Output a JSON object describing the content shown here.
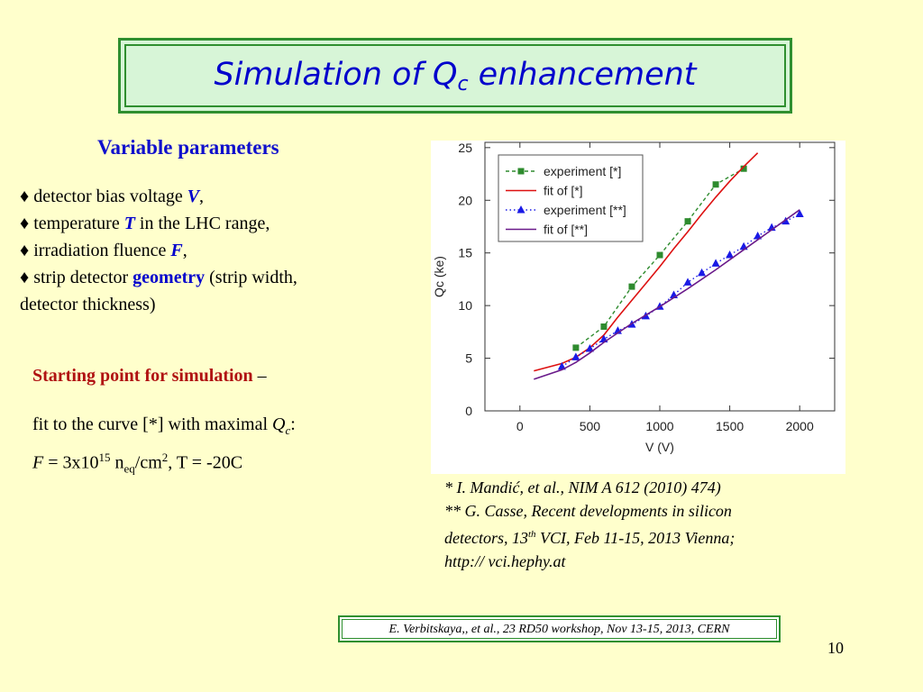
{
  "title": {
    "prefix": "Simulation of Q",
    "sub": "c",
    "suffix": " enhancement"
  },
  "heading": "Variable parameters",
  "params": [
    {
      "text": "♦ detector bias voltage ",
      "em": "V",
      "tail": ","
    },
    {
      "text": "♦ temperature ",
      "em": "T",
      "tail": " in the LHC range,"
    },
    {
      "text": "♦ irradiation fluence ",
      "em": "F",
      "tail": ","
    },
    {
      "text": "♦ strip detector ",
      "em": "geometry",
      "tail": " (strip width,"
    },
    {
      "text": "detector thickness)",
      "em": "",
      "tail": ""
    }
  ],
  "starting": {
    "label": "Starting point for simulation",
    "dash": " –"
  },
  "fit": {
    "line1": "fit to the curve [*] with maximal ",
    "q": "Q",
    "qsub": "c",
    "colon": ":",
    "f": "F",
    "eq": " = 3x10",
    "exp": "15",
    "n": " n",
    "nsub": "eq",
    "cm": "/cm",
    "cmexp": "2",
    "temp": ",   T = -20C"
  },
  "refs": {
    "r1": "* I. Mandić, et al., NIM A 612 (2010) 474)",
    "r2": "** G. Casse, Recent developments in silicon",
    "r3a": "detectors, 13",
    "r3sup": "th",
    "r3b": " VCI, Feb 11-15, 2013 Vienna;",
    "r4": "http:// vci.hephy.at"
  },
  "credit": "E. Verbitskaya,, et  al., 23 RD50 workshop, Nov 13-15, 2013, CERN",
  "page_number": "10",
  "colors": {
    "background": "#ffffcc",
    "green": "#2f8f2f",
    "blue": "#0000cc",
    "red": "#b01212"
  },
  "chart_data": {
    "type": "line",
    "xlabel": "V (V)",
    "ylabel": "Qc (ke)",
    "xlim": [
      -250,
      2250
    ],
    "ylim": [
      0,
      25.5
    ],
    "xticks": [
      0,
      500,
      1000,
      1500,
      2000
    ],
    "yticks": [
      0,
      5,
      10,
      15,
      20,
      25
    ],
    "legend_position": "top-left",
    "series": [
      {
        "name": "experiment [*]",
        "kind": "markers-dashed",
        "marker": "square",
        "color": "#2e8b2e",
        "x": [
          400,
          600,
          800,
          1000,
          1200,
          1400,
          1600
        ],
        "y": [
          6,
          8,
          11.8,
          14.8,
          18,
          21.5,
          23
        ]
      },
      {
        "name": "fit of [*]",
        "kind": "line",
        "color": "#dd1111",
        "x": [
          100,
          300,
          400,
          500,
          600,
          700,
          800,
          900,
          1000,
          1100,
          1200,
          1300,
          1400,
          1500,
          1600,
          1700
        ],
        "y": [
          3.8,
          4.5,
          5.1,
          6.0,
          7.2,
          8.9,
          10.5,
          12.1,
          13.7,
          15.4,
          17.0,
          18.7,
          20.3,
          21.8,
          23.2,
          24.5
        ]
      },
      {
        "name": "experiment [**]",
        "kind": "markers-dotted",
        "marker": "triangle",
        "color": "#1a1ae6",
        "x": [
          300,
          400,
          500,
          600,
          700,
          800,
          900,
          1000,
          1100,
          1200,
          1300,
          1400,
          1500,
          1600,
          1700,
          1800,
          1900,
          2000
        ],
        "y": [
          4.2,
          5.1,
          5.9,
          6.8,
          7.6,
          8.2,
          9.0,
          9.9,
          11.0,
          12.2,
          13.1,
          14.0,
          14.8,
          15.6,
          16.6,
          17.4,
          18.0,
          18.7
        ]
      },
      {
        "name": "fit of [**]",
        "kind": "line",
        "color": "#6a1a8a",
        "x": [
          100,
          300,
          400,
          500,
          600,
          700,
          800,
          900,
          1000,
          1200,
          1400,
          1600,
          1800,
          2000
        ],
        "y": [
          3.0,
          3.9,
          4.6,
          5.5,
          6.5,
          7.4,
          8.3,
          9.1,
          9.9,
          11.6,
          13.4,
          15.3,
          17.2,
          19.1
        ]
      }
    ]
  }
}
